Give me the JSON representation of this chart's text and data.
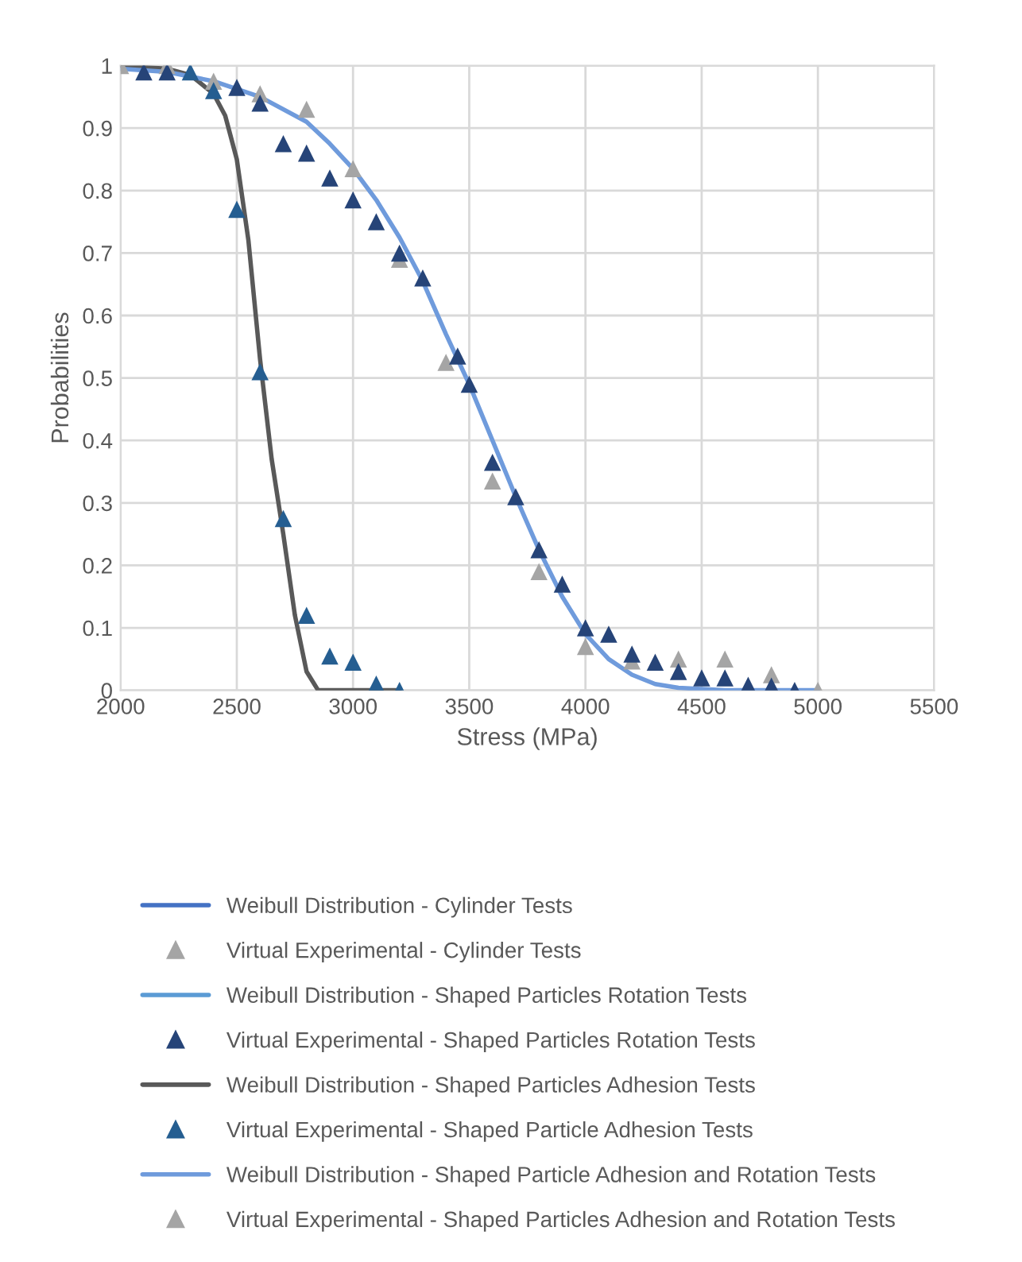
{
  "chart_data": {
    "type": "scatter",
    "xlabel": "Stress (MPa)",
    "ylabel": "Probabilities",
    "xlim": [
      2000,
      5500
    ],
    "xticks": [
      2000,
      2500,
      3000,
      3500,
      4000,
      4500,
      5000,
      5500
    ],
    "ylim": [
      0,
      1
    ],
    "yticks": [
      0,
      0.1,
      0.2,
      0.3,
      0.4,
      0.5,
      0.6,
      0.7,
      0.8,
      0.9,
      1
    ],
    "grid": true,
    "legend": "bottom",
    "series": [
      {
        "name": "Weibull Distribution - Cylinder Tests",
        "type": "line",
        "marker": "none",
        "color": "#4472c4"
      },
      {
        "name": "Virtual Experimental - Cylinder Tests",
        "marker": "triangle",
        "color": "#a5a5a5",
        "x": [
          2000,
          2200,
          2400,
          2600,
          2800,
          3000,
          3200,
          3400,
          3600,
          3800,
          4000,
          4200,
          4400,
          4600,
          4800,
          5000
        ],
        "values": [
          1,
          1,
          0.975,
          0.955,
          0.93,
          0.835,
          0.69,
          0.525,
          0.335,
          0.19,
          0.07,
          0.047,
          0.05,
          0.05,
          0.025,
          0
        ]
      },
      {
        "name": "Weibull Distribution - Shaped Particles Rotation Tests",
        "type": "line",
        "marker": "none",
        "color": "#5b9bd5"
      },
      {
        "name": "Virtual Experimental - Shaped Particles Rotation Tests",
        "marker": "triangle",
        "color": "#264478",
        "x": [
          2100,
          2200,
          2500,
          2600,
          2700,
          2800,
          2900,
          3000,
          3100,
          3200,
          3300,
          3450,
          3500,
          3600,
          3700,
          3800,
          3900,
          4000,
          4100,
          4200,
          4300,
          4400,
          4500,
          4600,
          4700,
          4800,
          4900
        ],
        "values": [
          0.99,
          0.99,
          0.965,
          0.94,
          0.875,
          0.86,
          0.82,
          0.785,
          0.75,
          0.7,
          0.66,
          0.535,
          0.49,
          0.365,
          0.31,
          0.225,
          0.17,
          0.1,
          0.09,
          0.058,
          0.045,
          0.03,
          0.02,
          0.02,
          0.008,
          0.007,
          0
        ]
      },
      {
        "name": "Weibull Distribution - Shaped Particles Adhesion Tests",
        "type": "line",
        "marker": "none",
        "color": "#595959",
        "x": [
          2000,
          2200,
          2300,
          2400,
          2450,
          2500,
          2550,
          2600,
          2650,
          2700,
          2750,
          2800,
          2850,
          3200
        ],
        "values": [
          1,
          0.995,
          0.985,
          0.955,
          0.92,
          0.85,
          0.72,
          0.53,
          0.37,
          0.25,
          0.12,
          0.03,
          0,
          0
        ]
      },
      {
        "name": "Virtual Experimental - Shaped Particle Adhesion Tests",
        "marker": "triangle",
        "color": "#255e91",
        "x": [
          2300,
          2400,
          2500,
          2600,
          2700,
          2800,
          2900,
          3000,
          3100,
          3200
        ],
        "values": [
          0.99,
          0.96,
          0.77,
          0.51,
          0.275,
          0.12,
          0.055,
          0.045,
          0.01,
          0
        ]
      },
      {
        "name": "Weibull Distribution - Shaped Particle Adhesion and Rotation Tests",
        "type": "line",
        "marker": "none",
        "color": "#6f9bdc",
        "x": [
          2000,
          2200,
          2400,
          2600,
          2800,
          2900,
          3000,
          3100,
          3200,
          3300,
          3400,
          3500,
          3600,
          3700,
          3800,
          3900,
          4000,
          4100,
          4200,
          4300,
          4400,
          4600,
          5000
        ],
        "values": [
          0.995,
          0.99,
          0.975,
          0.95,
          0.91,
          0.875,
          0.835,
          0.785,
          0.725,
          0.655,
          0.57,
          0.49,
          0.4,
          0.31,
          0.225,
          0.15,
          0.09,
          0.05,
          0.025,
          0.01,
          0.004,
          0,
          0
        ]
      },
      {
        "name": "Virtual Experimental - Shaped Particles Adhesion and Rotation Tests",
        "marker": "triangle",
        "color": "#a5a5a5"
      }
    ]
  }
}
